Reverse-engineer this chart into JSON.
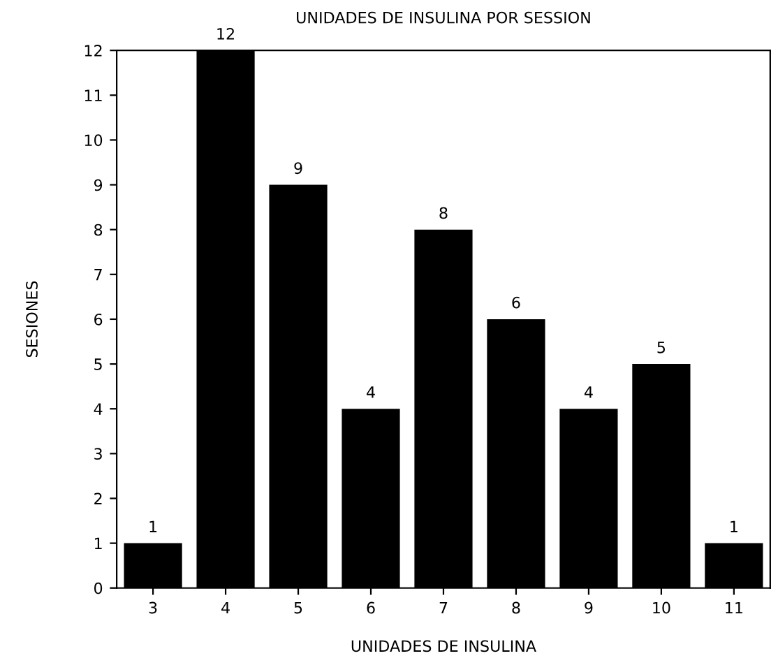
{
  "chart_data": {
    "type": "bar",
    "title": "UNIDADES DE INSULINA POR SESSION",
    "xlabel": "UNIDADES DE INSULINA",
    "ylabel": "SESIONES",
    "categories": [
      "3",
      "4",
      "5",
      "6",
      "7",
      "8",
      "9",
      "10",
      "11"
    ],
    "values": [
      1,
      12,
      9,
      4,
      8,
      6,
      4,
      5,
      1
    ],
    "color": "#000000",
    "ylim": [
      0,
      12
    ],
    "yticks": [
      0,
      1,
      2,
      3,
      4,
      5,
      6,
      7,
      8,
      9,
      10,
      11,
      12
    ],
    "data_labels": true,
    "grid": false
  }
}
